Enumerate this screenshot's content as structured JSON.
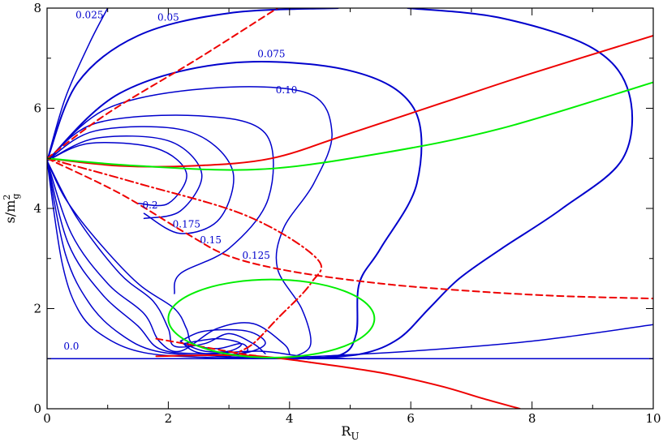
{
  "chart_data": {
    "type": "line",
    "xlabel": "R",
    "xlabel_sub": "U",
    "ylabel": "s/m",
    "ylabel_sup": "2",
    "ylabel_sub": "g",
    "xlim": [
      0,
      10
    ],
    "ylim": [
      0,
      8
    ],
    "x_ticks": [
      "0",
      "2",
      "4",
      "6",
      "8",
      "10"
    ],
    "y_ticks": [
      "0",
      "2",
      "4",
      "6",
      "8"
    ],
    "grid": false,
    "colors": {
      "contour": "#0000cc",
      "red": "#ee0000",
      "green": "#00ee00"
    },
    "contour_labels": [
      {
        "text": "0.025",
        "x": 0.7,
        "y": 7.8
      },
      {
        "text": "0.05",
        "x": 2.0,
        "y": 7.75
      },
      {
        "text": "0.075",
        "x": 3.7,
        "y": 7.02
      },
      {
        "text": "0.10",
        "x": 3.95,
        "y": 6.3
      },
      {
        "text": "0.2",
        "x": 1.7,
        "y": 4.0
      },
      {
        "text": "0.175",
        "x": 2.3,
        "y": 3.62
      },
      {
        "text": "0.15",
        "x": 2.7,
        "y": 3.3
      },
      {
        "text": "0.125",
        "x": 3.45,
        "y": 3.0
      },
      {
        "text": "0.0",
        "x": 0.4,
        "y": 1.18
      }
    ],
    "series": [
      {
        "style": "contour",
        "width": 1.5,
        "points": [
          [
            0,
            4.95
          ],
          [
            0.3,
            6.2
          ],
          [
            0.7,
            7.3
          ],
          [
            1.0,
            8.0
          ]
        ]
      },
      {
        "style": "contour",
        "width": 2.0,
        "points": [
          [
            0,
            4.95
          ],
          [
            0.5,
            6.5
          ],
          [
            1.5,
            7.45
          ],
          [
            3.0,
            7.9
          ],
          [
            4.8,
            8.0
          ]
        ]
      },
      {
        "style": "contour",
        "width": 2.0,
        "points": [
          [
            0,
            4.95
          ],
          [
            1.2,
            6.3
          ],
          [
            3.0,
            6.9
          ],
          [
            5.0,
            6.75
          ],
          [
            6.05,
            6.0
          ],
          [
            6.1,
            4.5
          ],
          [
            5.5,
            3.2
          ],
          [
            5.15,
            2.5
          ],
          [
            5.1,
            1.5
          ],
          [
            4.85,
            1.08
          ],
          [
            4.1,
            1.0
          ]
        ]
      },
      {
        "style": "contour",
        "width": 1.5,
        "points": [
          [
            0,
            4.95
          ],
          [
            1.0,
            6.0
          ],
          [
            2.7,
            6.4
          ],
          [
            4.3,
            6.3
          ],
          [
            4.7,
            5.5
          ],
          [
            4.4,
            4.5
          ],
          [
            3.9,
            3.6
          ],
          [
            3.8,
            2.8
          ],
          [
            4.2,
            2.0
          ],
          [
            4.35,
            1.3
          ],
          [
            4.1,
            1.05
          ],
          [
            3.8,
            1.0
          ]
        ]
      },
      {
        "style": "contour",
        "width": 1.5,
        "points": [
          [
            0,
            4.95
          ],
          [
            0.8,
            5.7
          ],
          [
            2.5,
            5.85
          ],
          [
            3.6,
            5.5
          ],
          [
            3.65,
            4.2
          ],
          [
            3.0,
            3.2
          ],
          [
            2.2,
            2.7
          ],
          [
            2.1,
            2.3
          ]
        ]
      },
      {
        "style": "contour",
        "width": 1.5,
        "points": [
          [
            0,
            4.95
          ],
          [
            0.8,
            5.55
          ],
          [
            2.3,
            5.55
          ],
          [
            3.05,
            4.8
          ],
          [
            2.85,
            3.8
          ],
          [
            2.2,
            3.5
          ],
          [
            1.6,
            3.9
          ]
        ]
      },
      {
        "style": "contour",
        "width": 1.5,
        "points": [
          [
            0,
            4.95
          ],
          [
            0.8,
            5.4
          ],
          [
            2.0,
            5.35
          ],
          [
            2.55,
            4.7
          ],
          [
            2.2,
            3.95
          ],
          [
            1.6,
            3.8
          ]
        ]
      },
      {
        "style": "contour",
        "width": 1.5,
        "points": [
          [
            0,
            4.95
          ],
          [
            0.7,
            5.3
          ],
          [
            1.8,
            5.2
          ],
          [
            2.3,
            4.7
          ],
          [
            2.0,
            4.1
          ],
          [
            1.5,
            4.1
          ]
        ]
      },
      {
        "style": "contour",
        "width": 1.5,
        "points": [
          [
            0,
            4.95
          ],
          [
            0.3,
            4.2
          ],
          [
            0.8,
            3.4
          ],
          [
            1.5,
            2.5
          ],
          [
            2.1,
            2.0
          ],
          [
            2.3,
            1.6
          ],
          [
            2.4,
            1.3
          ],
          [
            2.8,
            1.2
          ],
          [
            3.2,
            1.3
          ],
          [
            3.3,
            1.15
          ],
          [
            3.0,
            1.05
          ]
        ]
      },
      {
        "style": "contour",
        "width": 1.5,
        "points": [
          [
            0,
            4.95
          ],
          [
            0.5,
            3.8
          ],
          [
            1.2,
            2.7
          ],
          [
            1.75,
            2.15
          ],
          [
            2.0,
            1.6
          ],
          [
            2.1,
            1.25
          ],
          [
            2.6,
            1.3
          ],
          [
            3.0,
            1.5
          ],
          [
            3.4,
            1.3
          ],
          [
            3.6,
            1.1
          ]
        ]
      },
      {
        "style": "contour",
        "width": 1.5,
        "points": [
          [
            0,
            4.95
          ],
          [
            0.4,
            3.5
          ],
          [
            1.0,
            2.5
          ],
          [
            1.6,
            1.9
          ],
          [
            1.85,
            1.35
          ],
          [
            2.2,
            1.15
          ],
          [
            2.8,
            1.6
          ],
          [
            3.4,
            1.7
          ],
          [
            3.9,
            1.3
          ],
          [
            4.0,
            1.1
          ]
        ]
      },
      {
        "style": "contour",
        "width": 1.5,
        "points": [
          [
            0,
            4.95
          ],
          [
            0.35,
            3.3
          ],
          [
            0.9,
            2.3
          ],
          [
            1.5,
            1.65
          ],
          [
            1.85,
            1.2
          ],
          [
            2.5,
            1.1
          ],
          [
            3.5,
            1.15
          ],
          [
            4.2,
            1.05
          ],
          [
            5.0,
            1.0
          ]
        ]
      },
      {
        "style": "contour",
        "width": 1.5,
        "points": [
          [
            0,
            4.95
          ],
          [
            0.3,
            3.1
          ],
          [
            0.7,
            2.1
          ],
          [
            1.2,
            1.5
          ],
          [
            1.8,
            1.15
          ],
          [
            2.8,
            1.05
          ],
          [
            3.8,
            1.02
          ],
          [
            4.5,
            1.05
          ],
          [
            6.0,
            1.15
          ],
          [
            8.0,
            1.35
          ],
          [
            10.0,
            1.68
          ]
        ]
      },
      {
        "style": "contour",
        "width": 1.5,
        "points": [
          [
            0,
            4.95
          ],
          [
            0.25,
            2.9
          ],
          [
            0.55,
            1.9
          ],
          [
            1.0,
            1.4
          ],
          [
            1.6,
            1.12
          ],
          [
            2.5,
            1.03
          ],
          [
            3.6,
            1.01
          ]
        ]
      },
      {
        "style": "contour",
        "width": 2.0,
        "points": [
          [
            5.95,
            8.0
          ],
          [
            7.5,
            7.8
          ],
          [
            9.0,
            7.2
          ],
          [
            9.6,
            6.3
          ],
          [
            9.5,
            5.0
          ],
          [
            8.5,
            4.0
          ],
          [
            7.5,
            3.2
          ],
          [
            6.8,
            2.6
          ],
          [
            6.3,
            2.0
          ],
          [
            5.8,
            1.4
          ],
          [
            5.2,
            1.1
          ],
          [
            4.3,
            1.0
          ]
        ]
      },
      {
        "style": "contour",
        "width": 1.5,
        "points": [
          [
            0,
            1.0
          ],
          [
            10,
            1.0
          ]
        ]
      },
      {
        "style": "contour",
        "width": 1.5,
        "points": [
          [
            2.25,
            1.3
          ],
          [
            2.8,
            1.4
          ],
          [
            3.2,
            1.3
          ],
          [
            3.0,
            1.15
          ],
          [
            2.6,
            1.15
          ],
          [
            2.25,
            1.3
          ]
        ]
      },
      {
        "style": "contour",
        "width": 1.5,
        "points": [
          [
            2.2,
            1.35
          ],
          [
            2.6,
            1.55
          ],
          [
            3.3,
            1.55
          ],
          [
            3.6,
            1.3
          ],
          [
            3.2,
            1.1
          ],
          [
            2.5,
            1.12
          ],
          [
            2.2,
            1.35
          ]
        ]
      },
      {
        "style": "red",
        "width": 2.0,
        "points": [
          [
            0,
            5.0
          ],
          [
            1.2,
            4.85
          ],
          [
            2.4,
            4.85
          ],
          [
            3.7,
            5.0
          ],
          [
            5.0,
            5.5
          ],
          [
            6.5,
            6.1
          ],
          [
            8.0,
            6.7
          ],
          [
            10.0,
            7.45
          ]
        ]
      },
      {
        "style": "red",
        "width": 2.0,
        "points": [
          [
            1.8,
            1.05
          ],
          [
            2.8,
            1.07
          ],
          [
            3.5,
            1.05
          ],
          [
            4.2,
            0.95
          ],
          [
            5.5,
            0.72
          ],
          [
            6.5,
            0.45
          ],
          [
            7.2,
            0.2
          ],
          [
            7.8,
            0.0
          ]
        ]
      },
      {
        "style": "red",
        "width": 2.0,
        "dash": "8,5",
        "points": [
          [
            0,
            5.0
          ],
          [
            1.0,
            5.9
          ],
          [
            2.5,
            7.0
          ],
          [
            3.8,
            8.0
          ]
        ]
      },
      {
        "style": "red",
        "width": 2.0,
        "dash": "8,5",
        "points": [
          [
            0,
            5.0
          ],
          [
            1.2,
            4.3
          ],
          [
            2.3,
            3.5
          ],
          [
            3.0,
            3.05
          ],
          [
            4.0,
            2.75
          ],
          [
            5.5,
            2.5
          ],
          [
            7.0,
            2.35
          ],
          [
            8.5,
            2.25
          ],
          [
            10.0,
            2.2
          ]
        ]
      },
      {
        "style": "red",
        "width": 2.0,
        "dash": "8,5",
        "points": [
          [
            1.8,
            1.4
          ],
          [
            2.5,
            1.25
          ],
          [
            3.2,
            1.1
          ],
          [
            3.5,
            1.05
          ]
        ]
      },
      {
        "style": "red",
        "width": 2.0,
        "dash": "10,4,2,4",
        "points": [
          [
            0,
            5.0
          ],
          [
            1.5,
            4.5
          ],
          [
            3.3,
            3.85
          ],
          [
            4.45,
            3.0
          ],
          [
            4.35,
            2.5
          ],
          [
            3.8,
            1.8
          ],
          [
            3.4,
            1.3
          ],
          [
            3.1,
            1.1
          ]
        ]
      },
      {
        "style": "green",
        "width": 2.0,
        "points": [
          [
            0,
            5.0
          ],
          [
            1.5,
            4.85
          ],
          [
            3.5,
            4.78
          ],
          [
            5.5,
            5.1
          ],
          [
            7.5,
            5.6
          ],
          [
            10.0,
            6.52
          ]
        ]
      },
      {
        "style": "green",
        "width": 2.0,
        "ellipse": {
          "cx": 3.7,
          "cy": 1.8,
          "rx": 1.7,
          "ry": 0.78
        }
      }
    ]
  }
}
